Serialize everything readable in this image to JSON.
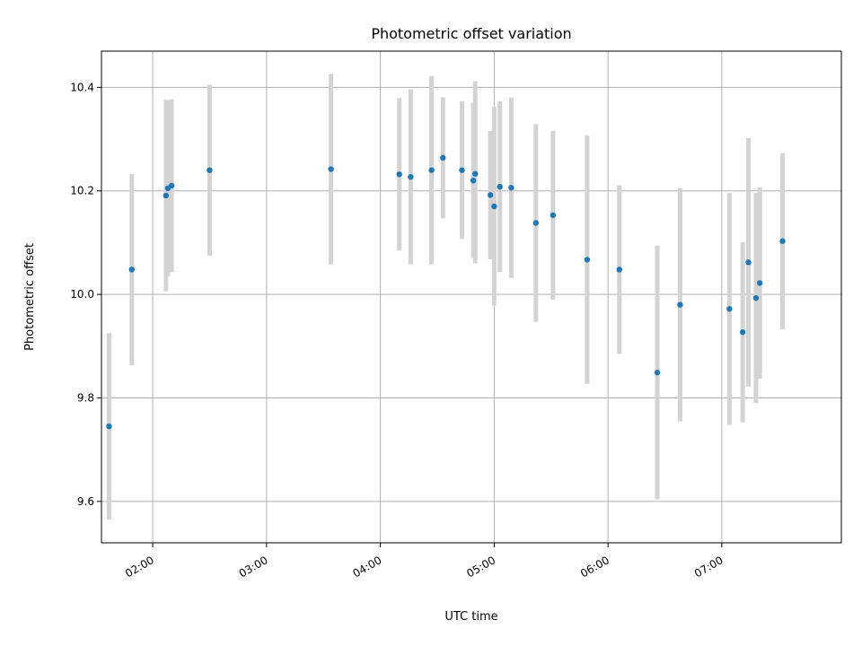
{
  "chart_data": {
    "type": "scatter",
    "title": "Photometric offset variation",
    "xlabel": "UTC time",
    "ylabel": "Photometric offset",
    "x_tick_labels": [
      "02:00",
      "03:00",
      "04:00",
      "05:00",
      "06:00",
      "07:00"
    ],
    "x_ticks": [
      "02:00",
      "03:00",
      "04:00",
      "05:00",
      "06:00",
      "07:00"
    ],
    "y_ticks": [
      9.6,
      9.8,
      10.0,
      10.2,
      10.4
    ],
    "y_tick_labels": [
      "9.6",
      "9.8",
      "10.0",
      "10.2",
      "10.4"
    ],
    "xlim": [
      "01:33",
      "08:03"
    ],
    "ylim": [
      9.52,
      10.47
    ],
    "grid": true,
    "colors": {
      "point": "#1f77b4",
      "errorbar": "#d3d3d3",
      "grid": "#b0b0b0"
    },
    "points": [
      {
        "x": "01:37",
        "y": 9.745,
        "ylo": 9.565,
        "yhi": 9.925
      },
      {
        "x": "01:49",
        "y": 10.048,
        "ylo": 9.863,
        "yhi": 10.233
      },
      {
        "x": "02:07",
        "y": 10.191,
        "ylo": 10.006,
        "yhi": 10.376
      },
      {
        "x": "02:08",
        "y": 10.205,
        "ylo": 10.035,
        "yhi": 10.375
      },
      {
        "x": "02:10",
        "y": 10.21,
        "ylo": 10.043,
        "yhi": 10.377
      },
      {
        "x": "02:30",
        "y": 10.24,
        "ylo": 10.075,
        "yhi": 10.405
      },
      {
        "x": "03:34",
        "y": 10.242,
        "ylo": 10.058,
        "yhi": 10.426
      },
      {
        "x": "04:10",
        "y": 10.232,
        "ylo": 10.085,
        "yhi": 10.379
      },
      {
        "x": "04:16",
        "y": 10.227,
        "ylo": 10.058,
        "yhi": 10.396
      },
      {
        "x": "04:27",
        "y": 10.24,
        "ylo": 10.058,
        "yhi": 10.422
      },
      {
        "x": "04:33",
        "y": 10.264,
        "ylo": 10.147,
        "yhi": 10.381
      },
      {
        "x": "04:43",
        "y": 10.24,
        "ylo": 10.107,
        "yhi": 10.373
      },
      {
        "x": "04:49",
        "y": 10.22,
        "ylo": 10.07,
        "yhi": 10.37
      },
      {
        "x": "04:50",
        "y": 10.233,
        "ylo": 10.06,
        "yhi": 10.412
      },
      {
        "x": "04:58",
        "y": 10.192,
        "ylo": 10.068,
        "yhi": 10.316
      },
      {
        "x": "05:00",
        "y": 10.17,
        "ylo": 9.978,
        "yhi": 10.362
      },
      {
        "x": "05:03",
        "y": 10.208,
        "ylo": 10.043,
        "yhi": 10.373
      },
      {
        "x": "05:09",
        "y": 10.206,
        "ylo": 10.032,
        "yhi": 10.38
      },
      {
        "x": "05:22",
        "y": 10.138,
        "ylo": 9.947,
        "yhi": 10.329
      },
      {
        "x": "05:31",
        "y": 10.153,
        "ylo": 9.99,
        "yhi": 10.316
      },
      {
        "x": "05:49",
        "y": 10.067,
        "ylo": 9.827,
        "yhi": 10.307
      },
      {
        "x": "06:06",
        "y": 10.048,
        "ylo": 9.885,
        "yhi": 10.211
      },
      {
        "x": "06:26",
        "y": 9.849,
        "ylo": 9.604,
        "yhi": 10.094
      },
      {
        "x": "06:38",
        "y": 9.98,
        "ylo": 9.755,
        "yhi": 10.205
      },
      {
        "x": "07:04",
        "y": 9.972,
        "ylo": 9.748,
        "yhi": 10.196
      },
      {
        "x": "07:11",
        "y": 9.927,
        "ylo": 9.753,
        "yhi": 10.101
      },
      {
        "x": "07:14",
        "y": 10.062,
        "ylo": 9.822,
        "yhi": 10.302
      },
      {
        "x": "07:18",
        "y": 9.993,
        "ylo": 9.79,
        "yhi": 10.196
      },
      {
        "x": "07:20",
        "y": 10.022,
        "ylo": 9.837,
        "yhi": 10.207
      },
      {
        "x": "07:32",
        "y": 10.103,
        "ylo": 9.933,
        "yhi": 10.273
      }
    ]
  }
}
